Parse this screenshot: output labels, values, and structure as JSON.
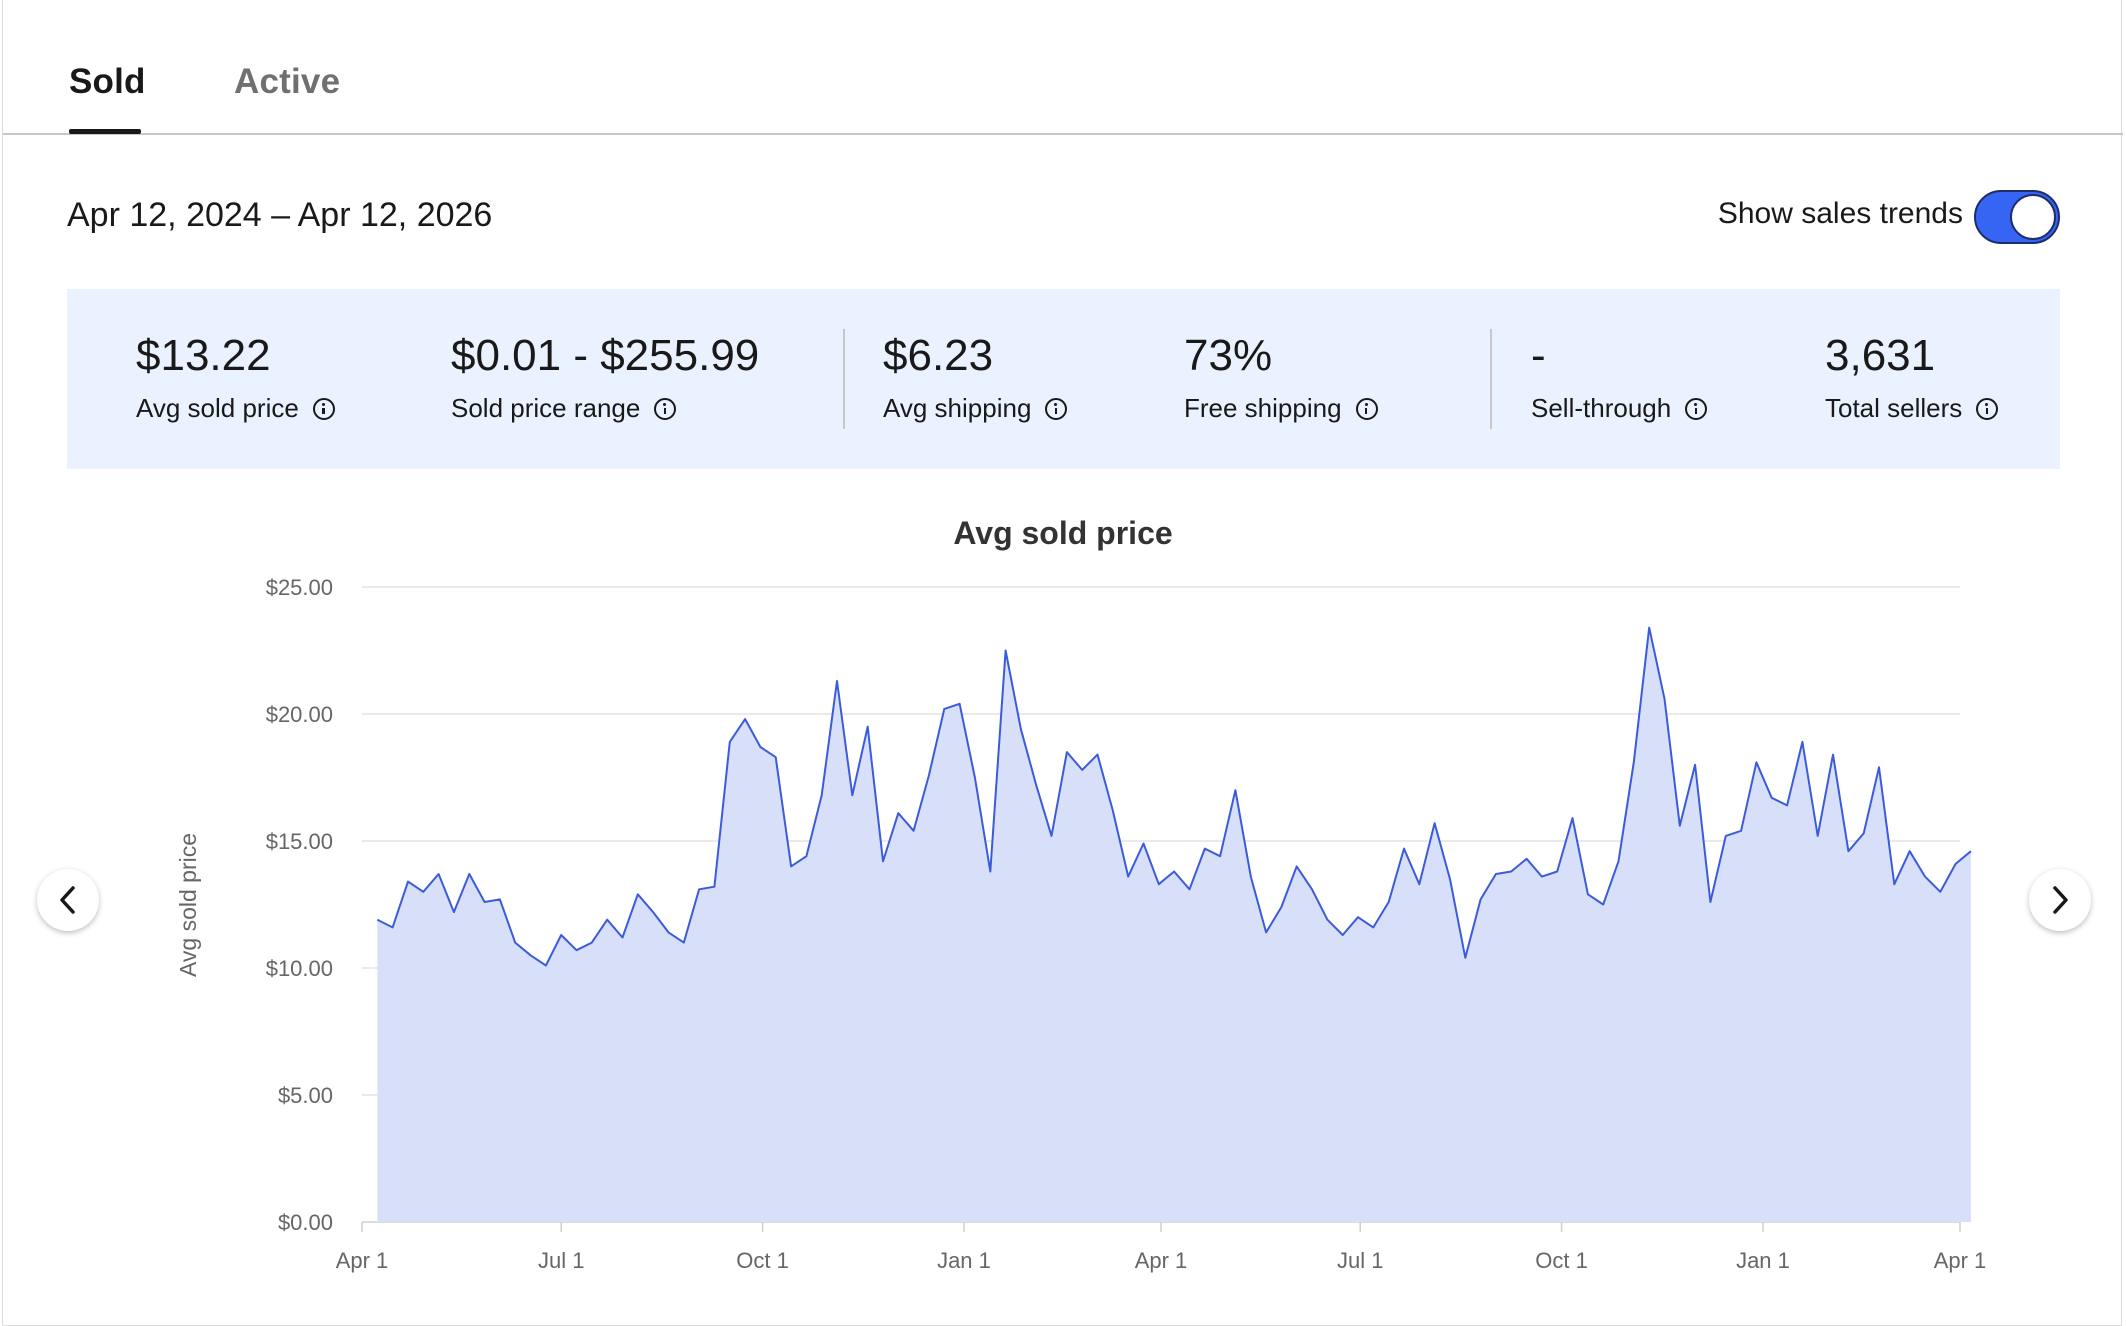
{
  "tabs": [
    {
      "label": "Sold",
      "selected": true
    },
    {
      "label": "Active",
      "selected": false
    }
  ],
  "date_range": "Apr 12, 2024 – Apr 12, 2026",
  "sales_trends": {
    "label": "Show sales trends",
    "enabled": true
  },
  "stats": [
    {
      "value": "$13.22",
      "label": "Avg sold price"
    },
    {
      "value": "$0.01 - $255.99",
      "label": "Sold price range"
    },
    {
      "value": "$6.23",
      "label": "Avg shipping"
    },
    {
      "value": "73%",
      "label": "Free shipping"
    },
    {
      "value": "-",
      "label": "Sell-through"
    },
    {
      "value": "3,631",
      "label": "Total sellers"
    }
  ],
  "colors": {
    "accent": "#3665f3",
    "line": "#3b5bdb",
    "area": "#d8e0f9",
    "stats_bg": "#ebf2ff"
  },
  "chart_data": {
    "type": "area",
    "title": "Avg sold price",
    "ylabel": "Avg sold price",
    "xlabel": "",
    "ylim": [
      0,
      25
    ],
    "y_ticks": [
      "$0.00",
      "$5.00",
      "$10.00",
      "$15.00",
      "$20.00",
      "$25.00"
    ],
    "x_ticks": [
      {
        "label": "Apr 1",
        "date": "2024-04-01"
      },
      {
        "label": "Jul 1",
        "date": "2024-07-01"
      },
      {
        "label": "Oct 1",
        "date": "2024-10-01"
      },
      {
        "label": "Jan 1",
        "date": "2025-01-01"
      },
      {
        "label": "Apr 1",
        "date": "2025-04-01"
      },
      {
        "label": "Jul 1",
        "date": "2025-07-01"
      },
      {
        "label": "Oct 1",
        "date": "2025-10-01"
      },
      {
        "label": "Jan 1",
        "date": "2026-01-01"
      },
      {
        "label": "Apr 1",
        "date": "2026-04-01"
      }
    ],
    "grid": true,
    "series": [
      {
        "x": [
          "2024-04-08",
          "2024-04-15",
          "2024-04-22",
          "2024-04-29",
          "2024-05-06",
          "2024-05-13",
          "2024-05-20",
          "2024-05-27",
          "2024-06-03",
          "2024-06-10",
          "2024-06-17",
          "2024-06-24",
          "2024-07-01",
          "2024-07-08",
          "2024-07-15",
          "2024-07-22",
          "2024-07-29",
          "2024-08-05",
          "2024-08-12",
          "2024-08-19",
          "2024-08-26",
          "2024-09-02",
          "2024-09-09",
          "2024-09-16",
          "2024-09-23",
          "2024-09-30",
          "2024-10-07",
          "2024-10-14",
          "2024-10-21",
          "2024-10-28",
          "2024-11-04",
          "2024-11-11",
          "2024-11-18",
          "2024-11-25",
          "2024-12-02",
          "2024-12-09",
          "2024-12-16",
          "2024-12-23",
          "2024-12-30",
          "2025-01-06",
          "2025-01-13",
          "2025-01-20",
          "2025-01-27",
          "2025-02-03",
          "2025-02-10",
          "2025-02-17",
          "2025-02-24",
          "2025-03-03",
          "2025-03-10",
          "2025-03-17",
          "2025-03-24",
          "2025-03-31",
          "2025-04-07",
          "2025-04-14",
          "2025-04-21",
          "2025-04-28",
          "2025-05-05",
          "2025-05-12",
          "2025-05-19",
          "2025-05-26",
          "2025-06-02",
          "2025-06-09",
          "2025-06-16",
          "2025-06-23",
          "2025-06-30",
          "2025-07-07",
          "2025-07-14",
          "2025-07-21",
          "2025-07-28",
          "2025-08-04",
          "2025-08-11",
          "2025-08-18",
          "2025-08-25",
          "2025-09-01",
          "2025-09-08",
          "2025-09-15",
          "2025-09-22",
          "2025-09-29",
          "2025-10-06",
          "2025-10-13",
          "2025-10-20",
          "2025-10-27",
          "2025-11-03",
          "2025-11-10",
          "2025-11-17",
          "2025-11-24",
          "2025-12-01",
          "2025-12-08",
          "2025-12-15",
          "2025-12-22",
          "2025-12-29",
          "2026-01-05",
          "2026-01-12",
          "2026-01-19",
          "2026-01-26",
          "2026-02-02",
          "2026-02-09",
          "2026-02-16",
          "2026-02-23",
          "2026-03-02",
          "2026-03-09",
          "2026-03-16",
          "2026-03-23",
          "2026-03-30",
          "2026-04-06"
        ],
        "values": [
          11.9,
          11.6,
          13.4,
          13.0,
          13.7,
          12.2,
          13.7,
          12.6,
          12.7,
          11.0,
          10.5,
          10.1,
          11.3,
          10.7,
          11.0,
          11.9,
          11.2,
          12.9,
          12.2,
          11.4,
          11.0,
          13.1,
          13.2,
          18.9,
          19.8,
          18.7,
          18.3,
          14.0,
          14.4,
          16.8,
          21.3,
          16.8,
          19.5,
          14.2,
          16.1,
          15.4,
          17.6,
          20.2,
          20.4,
          17.5,
          13.8,
          22.5,
          19.4,
          17.2,
          15.2,
          18.5,
          17.8,
          18.4,
          16.2,
          13.6,
          14.9,
          13.3,
          13.8,
          13.1,
          14.7,
          14.4,
          17.0,
          13.6,
          11.4,
          12.4,
          14.0,
          13.1,
          11.9,
          11.3,
          12.0,
          11.6,
          12.6,
          14.7,
          13.3,
          15.7,
          13.5,
          10.4,
          12.7,
          13.7,
          13.8,
          14.3,
          13.6,
          13.8,
          15.9,
          12.9,
          12.5,
          14.2,
          18.1,
          23.4,
          20.6,
          15.6,
          18.0,
          12.6,
          15.2,
          15.4,
          18.1,
          16.7,
          16.4,
          18.9,
          15.2,
          18.4,
          14.6,
          15.3,
          17.9,
          13.3,
          14.6,
          13.6,
          13.0,
          14.1,
          14.6
        ]
      }
    ]
  }
}
